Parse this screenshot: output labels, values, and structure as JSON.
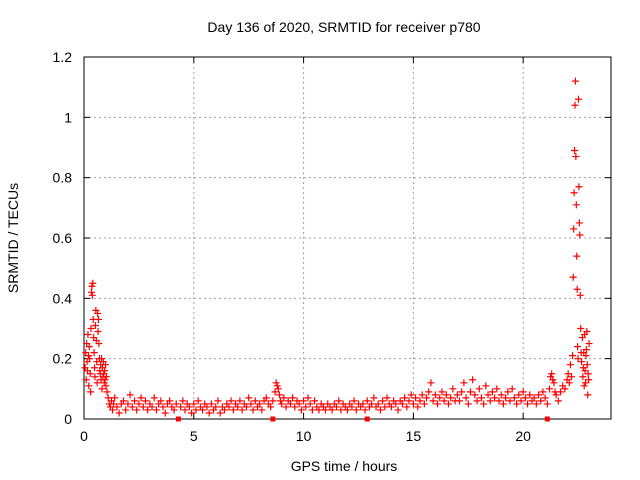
{
  "chart_data": {
    "type": "scatter",
    "title": "Day 136 of 2020, SRMTID for receiver p780",
    "xlabel": "GPS time / hours",
    "ylabel": "SRMTID / TECUs",
    "xlim": [
      0,
      24
    ],
    "ylim": [
      0,
      1.2
    ],
    "x_ticks": [
      "0",
      "5",
      "10",
      "15",
      "20"
    ],
    "y_ticks": [
      "0",
      "0.2",
      "0.4",
      "0.6",
      "0.8",
      "1",
      "1.2"
    ],
    "grid": true,
    "marker": "plus",
    "color": "#ff0000",
    "axis_markers_x": [
      4.3,
      8.6,
      12.9,
      21.1
    ],
    "series": [
      {
        "points": [
          [
            0.05,
            0.17
          ],
          [
            0.08,
            0.22
          ],
          [
            0.1,
            0.13
          ],
          [
            0.12,
            0.25
          ],
          [
            0.14,
            0.19
          ],
          [
            0.16,
            0.16
          ],
          [
            0.18,
            0.28
          ],
          [
            0.2,
            0.21
          ],
          [
            0.22,
            0.11
          ],
          [
            0.24,
            0.24
          ],
          [
            0.26,
            0.2
          ],
          [
            0.28,
            0.15
          ],
          [
            0.3,
            0.09
          ],
          [
            0.32,
            0.3
          ],
          [
            0.34,
            0.42
          ],
          [
            0.36,
            0.44
          ],
          [
            0.38,
            0.41
          ],
          [
            0.4,
            0.45
          ],
          [
            0.42,
            0.33
          ],
          [
            0.44,
            0.27
          ],
          [
            0.46,
            0.22
          ],
          [
            0.48,
            0.17
          ],
          [
            0.5,
            0.14
          ],
          [
            0.52,
            0.31
          ],
          [
            0.54,
            0.36
          ],
          [
            0.56,
            0.26
          ],
          [
            0.58,
            0.19
          ],
          [
            0.6,
            0.12
          ],
          [
            0.62,
            0.35
          ],
          [
            0.64,
            0.29
          ],
          [
            0.66,
            0.33
          ],
          [
            0.68,
            0.25
          ],
          [
            0.7,
            0.2
          ],
          [
            0.72,
            0.16
          ],
          [
            0.74,
            0.15
          ],
          [
            0.76,
            0.18
          ],
          [
            0.78,
            0.13
          ],
          [
            0.8,
            0.2
          ],
          [
            0.82,
            0.1
          ],
          [
            0.84,
            0.17
          ],
          [
            0.86,
            0.14
          ],
          [
            0.88,
            0.19
          ],
          [
            0.9,
            0.15
          ],
          [
            0.92,
            0.12
          ],
          [
            0.94,
            0.16
          ],
          [
            0.96,
            0.13
          ],
          [
            0.98,
            0.18
          ],
          [
            1.0,
            0.11
          ],
          [
            1.02,
            0.14
          ],
          [
            1.05,
            0.09
          ],
          [
            1.1,
            0.07
          ],
          [
            1.15,
            0.05
          ],
          [
            1.2,
            0.04
          ],
          [
            1.25,
            0.06
          ],
          [
            1.3,
            0.03
          ],
          [
            1.35,
            0.05
          ],
          [
            1.4,
            0.07
          ],
          [
            1.5,
            0.04
          ],
          [
            1.6,
            0.02
          ],
          [
            1.7,
            0.05
          ],
          [
            1.8,
            0.06
          ],
          [
            1.9,
            0.03
          ],
          [
            2.0,
            0.05
          ],
          [
            2.1,
            0.08
          ],
          [
            2.2,
            0.04
          ],
          [
            2.3,
            0.06
          ],
          [
            2.4,
            0.03
          ],
          [
            2.5,
            0.05
          ],
          [
            2.6,
            0.07
          ],
          [
            2.7,
            0.04
          ],
          [
            2.8,
            0.06
          ],
          [
            2.9,
            0.03
          ],
          [
            3.0,
            0.05
          ],
          [
            3.1,
            0.04
          ],
          [
            3.2,
            0.07
          ],
          [
            3.3,
            0.03
          ],
          [
            3.4,
            0.05
          ],
          [
            3.5,
            0.06
          ],
          [
            3.6,
            0.04
          ],
          [
            3.7,
            0.02
          ],
          [
            3.8,
            0.05
          ],
          [
            3.9,
            0.06
          ],
          [
            4.0,
            0.04
          ],
          [
            4.1,
            0.03
          ],
          [
            4.2,
            0.05
          ],
          [
            4.4,
            0.04
          ],
          [
            4.5,
            0.06
          ],
          [
            4.6,
            0.03
          ],
          [
            4.7,
            0.05
          ],
          [
            4.8,
            0.04
          ],
          [
            4.9,
            0.02
          ],
          [
            5.0,
            0.05
          ],
          [
            5.1,
            0.03
          ],
          [
            5.2,
            0.06
          ],
          [
            5.3,
            0.04
          ],
          [
            5.4,
            0.03
          ],
          [
            5.5,
            0.05
          ],
          [
            5.6,
            0.04
          ],
          [
            5.7,
            0.02
          ],
          [
            5.8,
            0.05
          ],
          [
            5.9,
            0.03
          ],
          [
            6.0,
            0.04
          ],
          [
            6.1,
            0.06
          ],
          [
            6.2,
            0.02
          ],
          [
            6.3,
            0.04
          ],
          [
            6.4,
            0.03
          ],
          [
            6.5,
            0.05
          ],
          [
            6.6,
            0.04
          ],
          [
            6.7,
            0.06
          ],
          [
            6.8,
            0.03
          ],
          [
            6.9,
            0.05
          ],
          [
            7.0,
            0.04
          ],
          [
            7.1,
            0.06
          ],
          [
            7.2,
            0.03
          ],
          [
            7.3,
            0.05
          ],
          [
            7.4,
            0.04
          ],
          [
            7.5,
            0.07
          ],
          [
            7.6,
            0.05
          ],
          [
            7.7,
            0.03
          ],
          [
            7.8,
            0.06
          ],
          [
            7.9,
            0.04
          ],
          [
            8.0,
            0.05
          ],
          [
            8.1,
            0.03
          ],
          [
            8.2,
            0.06
          ],
          [
            8.3,
            0.07
          ],
          [
            8.4,
            0.05
          ],
          [
            8.5,
            0.04
          ],
          [
            8.6,
            0.06
          ],
          [
            8.7,
            0.09
          ],
          [
            8.75,
            0.12
          ],
          [
            8.8,
            0.11
          ],
          [
            8.85,
            0.1
          ],
          [
            8.9,
            0.08
          ],
          [
            8.95,
            0.06
          ],
          [
            9.0,
            0.05
          ],
          [
            9.1,
            0.07
          ],
          [
            9.2,
            0.04
          ],
          [
            9.3,
            0.06
          ],
          [
            9.4,
            0.05
          ],
          [
            9.5,
            0.07
          ],
          [
            9.6,
            0.04
          ],
          [
            9.7,
            0.06
          ],
          [
            9.8,
            0.05
          ],
          [
            9.9,
            0.03
          ],
          [
            10.0,
            0.06
          ],
          [
            10.1,
            0.04
          ],
          [
            10.2,
            0.07
          ],
          [
            10.3,
            0.05
          ],
          [
            10.4,
            0.03
          ],
          [
            10.5,
            0.06
          ],
          [
            10.6,
            0.04
          ],
          [
            10.7,
            0.03
          ],
          [
            10.8,
            0.05
          ],
          [
            10.9,
            0.04
          ],
          [
            11.0,
            0.03
          ],
          [
            11.1,
            0.05
          ],
          [
            11.2,
            0.04
          ],
          [
            11.3,
            0.03
          ],
          [
            11.4,
            0.05
          ],
          [
            11.5,
            0.04
          ],
          [
            11.6,
            0.06
          ],
          [
            11.7,
            0.03
          ],
          [
            11.8,
            0.05
          ],
          [
            11.9,
            0.04
          ],
          [
            12.0,
            0.03
          ],
          [
            12.1,
            0.05
          ],
          [
            12.2,
            0.04
          ],
          [
            12.3,
            0.06
          ],
          [
            12.4,
            0.03
          ],
          [
            12.5,
            0.05
          ],
          [
            12.6,
            0.04
          ],
          [
            12.7,
            0.05
          ],
          [
            12.8,
            0.03
          ],
          [
            12.9,
            0.06
          ],
          [
            13.0,
            0.04
          ],
          [
            13.1,
            0.05
          ],
          [
            13.2,
            0.07
          ],
          [
            13.3,
            0.04
          ],
          [
            13.4,
            0.05
          ],
          [
            13.5,
            0.03
          ],
          [
            13.6,
            0.06
          ],
          [
            13.7,
            0.04
          ],
          [
            13.8,
            0.07
          ],
          [
            13.9,
            0.05
          ],
          [
            14.0,
            0.04
          ],
          [
            14.1,
            0.06
          ],
          [
            14.2,
            0.05
          ],
          [
            14.3,
            0.03
          ],
          [
            14.4,
            0.06
          ],
          [
            14.5,
            0.05
          ],
          [
            14.6,
            0.07
          ],
          [
            14.7,
            0.04
          ],
          [
            14.8,
            0.06
          ],
          [
            14.9,
            0.08
          ],
          [
            15.0,
            0.05
          ],
          [
            15.1,
            0.07
          ],
          [
            15.2,
            0.04
          ],
          [
            15.3,
            0.06
          ],
          [
            15.4,
            0.08
          ],
          [
            15.5,
            0.05
          ],
          [
            15.6,
            0.07
          ],
          [
            15.7,
            0.09
          ],
          [
            15.8,
            0.12
          ],
          [
            15.9,
            0.06
          ],
          [
            16.0,
            0.08
          ],
          [
            16.1,
            0.05
          ],
          [
            16.2,
            0.07
          ],
          [
            16.3,
            0.09
          ],
          [
            16.4,
            0.06
          ],
          [
            16.5,
            0.08
          ],
          [
            16.6,
            0.05
          ],
          [
            16.7,
            0.07
          ],
          [
            16.8,
            0.1
          ],
          [
            16.9,
            0.06
          ],
          [
            17.0,
            0.08
          ],
          [
            17.1,
            0.06
          ],
          [
            17.2,
            0.09
          ],
          [
            17.3,
            0.12
          ],
          [
            17.4,
            0.07
          ],
          [
            17.5,
            0.05
          ],
          [
            17.6,
            0.09
          ],
          [
            17.7,
            0.13
          ],
          [
            17.8,
            0.08
          ],
          [
            17.9,
            0.06
          ],
          [
            18.0,
            0.1
          ],
          [
            18.1,
            0.07
          ],
          [
            18.2,
            0.05
          ],
          [
            18.3,
            0.11
          ],
          [
            18.4,
            0.08
          ],
          [
            18.5,
            0.06
          ],
          [
            18.6,
            0.09
          ],
          [
            18.7,
            0.07
          ],
          [
            18.8,
            0.1
          ],
          [
            18.9,
            0.06
          ],
          [
            19.0,
            0.08
          ],
          [
            19.1,
            0.05
          ],
          [
            19.2,
            0.07
          ],
          [
            19.3,
            0.09
          ],
          [
            19.4,
            0.06
          ],
          [
            19.5,
            0.1
          ],
          [
            19.6,
            0.07
          ],
          [
            19.7,
            0.05
          ],
          [
            19.8,
            0.08
          ],
          [
            19.9,
            0.06
          ],
          [
            20.0,
            0.09
          ],
          [
            20.1,
            0.07
          ],
          [
            20.2,
            0.05
          ],
          [
            20.3,
            0.08
          ],
          [
            20.4,
            0.06
          ],
          [
            20.5,
            0.07
          ],
          [
            20.6,
            0.05
          ],
          [
            20.7,
            0.08
          ],
          [
            20.8,
            0.06
          ],
          [
            20.9,
            0.09
          ],
          [
            21.0,
            0.07
          ],
          [
            21.1,
            0.05
          ],
          [
            21.2,
            0.1
          ],
          [
            21.25,
            0.14
          ],
          [
            21.3,
            0.15
          ],
          [
            21.35,
            0.13
          ],
          [
            21.4,
            0.12
          ],
          [
            21.45,
            0.09
          ],
          [
            21.5,
            0.08
          ],
          [
            21.6,
            0.06
          ],
          [
            21.7,
            0.09
          ],
          [
            21.8,
            0.11
          ],
          [
            21.9,
            0.1
          ],
          [
            22.0,
            0.13
          ],
          [
            22.05,
            0.15
          ],
          [
            22.1,
            0.12
          ],
          [
            22.15,
            0.18
          ],
          [
            22.2,
            0.14
          ],
          [
            22.25,
            0.21
          ],
          [
            22.28,
            0.47
          ],
          [
            22.3,
            0.63
          ],
          [
            22.32,
            0.75
          ],
          [
            22.34,
            0.89
          ],
          [
            22.36,
            1.04
          ],
          [
            22.38,
            1.12
          ],
          [
            22.4,
            0.87
          ],
          [
            22.42,
            0.71
          ],
          [
            22.44,
            0.54
          ],
          [
            22.46,
            0.43
          ],
          [
            22.48,
            0.24
          ],
          [
            22.5,
            0.2
          ],
          [
            22.52,
            1.06
          ],
          [
            22.54,
            0.77
          ],
          [
            22.56,
            0.65
          ],
          [
            22.58,
            0.61
          ],
          [
            22.6,
            0.41
          ],
          [
            22.62,
            0.3
          ],
          [
            22.64,
            0.22
          ],
          [
            22.66,
            0.19
          ],
          [
            22.7,
            0.27
          ],
          [
            22.72,
            0.14
          ],
          [
            22.74,
            0.17
          ],
          [
            22.76,
            0.22
          ],
          [
            22.78,
            0.11
          ],
          [
            22.8,
            0.28
          ],
          [
            22.82,
            0.16
          ],
          [
            22.84,
            0.12
          ],
          [
            22.86,
            0.21
          ],
          [
            22.88,
            0.23
          ],
          [
            22.9,
            0.29
          ],
          [
            22.92,
            0.18
          ],
          [
            22.94,
            0.08
          ],
          [
            22.96,
            0.15
          ],
          [
            22.98,
            0.13
          ],
          [
            23.0,
            0.25
          ]
        ]
      }
    ]
  }
}
